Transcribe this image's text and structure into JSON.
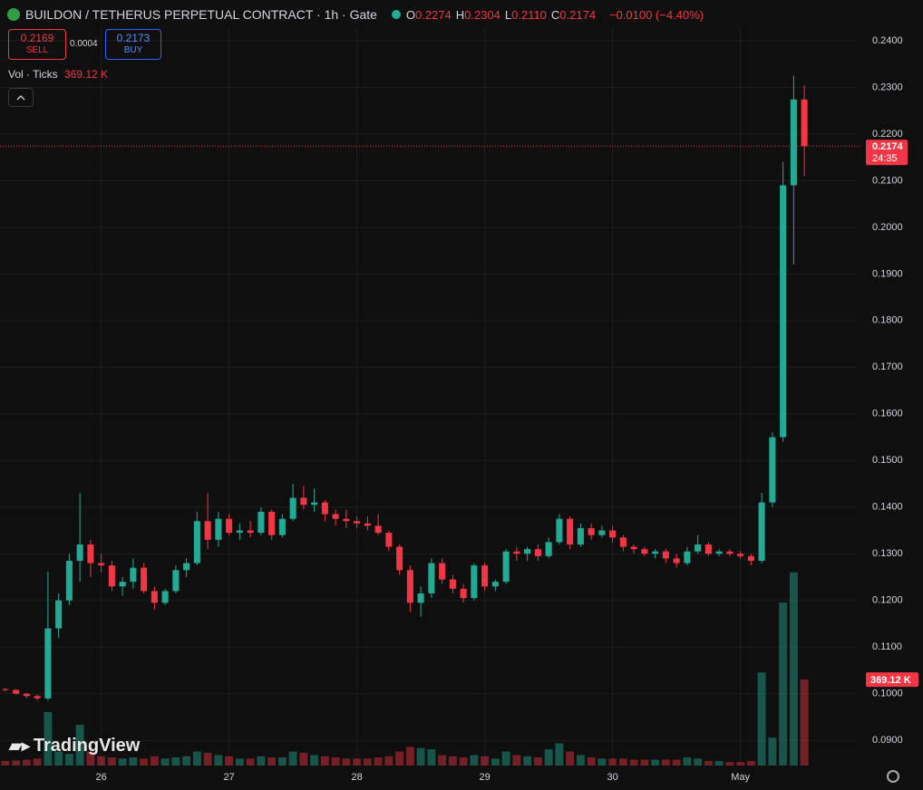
{
  "chart_data": {
    "type": "candlestick",
    "title": "BUILDON / TETHERUS PERPETUAL CONTRACT · 1h · Gate",
    "ohlc_legend": [
      {
        "key": "O",
        "value": "0.2274"
      },
      {
        "key": "H",
        "value": "0.2304"
      },
      {
        "key": "L",
        "value": "0.2110"
      },
      {
        "key": "C",
        "value": "0.2174"
      }
    ],
    "change": "−0.0100 (−4.40%)",
    "trade": {
      "sell_price": "0.2169",
      "sell": "SELL",
      "spread": "0.0004",
      "buy_price": "0.2173",
      "buy": "BUY"
    },
    "watermark": "TradingView",
    "up_color": "#22ab94",
    "down_color": "#f23645",
    "categories": [
      null,
      null,
      null,
      null,
      null,
      null,
      null,
      null,
      null,
      "26",
      null,
      null,
      null,
      null,
      null,
      null,
      null,
      null,
      null,
      null,
      null,
      "27",
      null,
      null,
      null,
      null,
      null,
      null,
      null,
      null,
      null,
      null,
      null,
      "28",
      null,
      null,
      null,
      null,
      null,
      null,
      null,
      null,
      null,
      null,
      null,
      "29",
      null,
      null,
      null,
      null,
      null,
      null,
      null,
      null,
      null,
      null,
      null,
      "30",
      null,
      null,
      null,
      null,
      null,
      null,
      null,
      null,
      null,
      null,
      null,
      "May",
      null,
      null,
      null,
      null,
      null,
      null
    ],
    "open": [
      0.101,
      0.1008,
      0.1,
      0.0995,
      0.099,
      0.114,
      0.12,
      0.1285,
      0.132,
      0.128,
      0.1275,
      0.123,
      0.124,
      0.127,
      0.122,
      0.1195,
      0.122,
      0.1265,
      0.128,
      0.137,
      0.133,
      0.1375,
      0.1345,
      0.135,
      0.1345,
      0.139,
      0.134,
      0.1375,
      0.142,
      0.1405,
      0.141,
      0.1385,
      0.1375,
      0.137,
      0.1365,
      0.136,
      0.1345,
      0.1315,
      0.1265,
      0.1195,
      0.1215,
      0.128,
      0.1245,
      0.1225,
      0.1205,
      0.1275,
      0.123,
      0.124,
      0.1305,
      0.13,
      0.131,
      0.1295,
      0.1325,
      0.1375,
      0.132,
      0.1355,
      0.134,
      0.135,
      0.1335,
      0.1315,
      0.131,
      0.13,
      0.1305,
      0.129,
      0.128,
      0.1305,
      0.132,
      0.13,
      0.1305,
      0.13,
      0.1295,
      0.1285,
      0.141,
      0.155,
      0.209,
      0.2274
    ],
    "high": [
      0.1012,
      0.101,
      0.1002,
      0.0998,
      0.1262,
      0.1215,
      0.13,
      0.143,
      0.133,
      0.13,
      0.1285,
      0.125,
      0.129,
      0.128,
      0.123,
      0.1225,
      0.1275,
      0.129,
      0.139,
      0.143,
      0.139,
      0.1385,
      0.1365,
      0.137,
      0.14,
      0.1395,
      0.1385,
      0.145,
      0.1445,
      0.144,
      0.1415,
      0.1395,
      0.1395,
      0.138,
      0.138,
      0.1385,
      0.135,
      0.132,
      0.1275,
      0.123,
      0.129,
      0.129,
      0.1255,
      0.1235,
      0.128,
      0.128,
      0.1245,
      0.131,
      0.1315,
      0.1315,
      0.132,
      0.1335,
      0.1385,
      0.138,
      0.1365,
      0.1365,
      0.136,
      0.136,
      0.134,
      0.132,
      0.1315,
      0.131,
      0.131,
      0.13,
      0.1315,
      0.134,
      0.1325,
      0.131,
      0.131,
      0.1305,
      0.13,
      0.143,
      0.156,
      0.214,
      0.2325,
      0.2304
    ],
    "low": [
      0.1005,
      0.0998,
      0.099,
      0.0985,
      0.0985,
      0.112,
      0.119,
      0.124,
      0.125,
      0.126,
      0.122,
      0.121,
      0.1225,
      0.1215,
      0.118,
      0.119,
      0.1215,
      0.125,
      0.1275,
      0.131,
      0.1315,
      0.134,
      0.133,
      0.1335,
      0.134,
      0.133,
      0.1335,
      0.137,
      0.1395,
      0.139,
      0.137,
      0.136,
      0.1355,
      0.1355,
      0.135,
      0.134,
      0.1305,
      0.1255,
      0.1175,
      0.1165,
      0.1205,
      0.1235,
      0.1215,
      0.1195,
      0.12,
      0.122,
      0.122,
      0.1235,
      0.1285,
      0.1285,
      0.1285,
      0.129,
      0.132,
      0.131,
      0.1315,
      0.133,
      0.1335,
      0.1325,
      0.1305,
      0.13,
      0.1295,
      0.129,
      0.128,
      0.127,
      0.1275,
      0.13,
      0.1295,
      0.1295,
      0.1295,
      0.129,
      0.1275,
      0.128,
      0.14,
      0.154,
      0.192,
      0.211
    ],
    "close": [
      0.1008,
      0.1,
      0.0995,
      0.099,
      0.114,
      0.12,
      0.1285,
      0.132,
      0.128,
      0.1275,
      0.123,
      0.124,
      0.127,
      0.122,
      0.1195,
      0.122,
      0.1265,
      0.128,
      0.137,
      0.133,
      0.1375,
      0.1345,
      0.135,
      0.1345,
      0.139,
      0.134,
      0.1375,
      0.142,
      0.1405,
      0.141,
      0.1385,
      0.1375,
      0.137,
      0.1365,
      0.136,
      0.1345,
      0.1315,
      0.1265,
      0.1195,
      0.1215,
      0.128,
      0.1245,
      0.1225,
      0.1205,
      0.1275,
      0.123,
      0.124,
      0.1305,
      0.13,
      0.131,
      0.1295,
      0.1325,
      0.1375,
      0.132,
      0.1355,
      0.134,
      0.135,
      0.1335,
      0.1315,
      0.131,
      0.13,
      0.1305,
      0.129,
      0.128,
      0.1305,
      0.132,
      0.13,
      0.1305,
      0.13,
      0.1295,
      0.1285,
      0.141,
      0.155,
      0.209,
      0.2274,
      0.2174
    ],
    "volume": {
      "name": "Vol · Ticks",
      "last_label": "369.12 K",
      "values": [
        20000,
        22000,
        25000,
        30000,
        230000,
        60000,
        50000,
        175000,
        60000,
        40000,
        35000,
        30000,
        35000,
        30000,
        40000,
        30000,
        35000,
        40000,
        60000,
        55000,
        45000,
        40000,
        30000,
        30000,
        40000,
        35000,
        35000,
        60000,
        55000,
        45000,
        40000,
        35000,
        30000,
        30000,
        30000,
        35000,
        40000,
        60000,
        80000,
        75000,
        70000,
        45000,
        40000,
        35000,
        45000,
        40000,
        30000,
        60000,
        45000,
        40000,
        35000,
        70000,
        95000,
        60000,
        45000,
        35000,
        30000,
        30000,
        30000,
        25000,
        25000,
        25000,
        25000,
        25000,
        35000,
        30000,
        20000,
        20000,
        15000,
        15000,
        20000,
        400000,
        120000,
        700000,
        830000,
        369120
      ],
      "vlim": [
        0,
        1000000
      ]
    },
    "last_price": 0.2174,
    "last_price_label": "0.2174",
    "countdown": "24:35",
    "ylim": [
      0.0846,
      0.2429
    ],
    "yticks": [
      {
        "value": 0.09,
        "label": "0.0900"
      },
      {
        "value": 0.1,
        "label": "0.1000"
      },
      {
        "value": 0.11,
        "label": "0.1100"
      },
      {
        "value": 0.12,
        "label": "0.1200"
      },
      {
        "value": 0.13,
        "label": "0.1300"
      },
      {
        "value": 0.14,
        "label": "0.1400"
      },
      {
        "value": 0.15,
        "label": "0.1500"
      },
      {
        "value": 0.16,
        "label": "0.1600"
      },
      {
        "value": 0.17,
        "label": "0.1700"
      },
      {
        "value": 0.18,
        "label": "0.1800"
      },
      {
        "value": 0.19,
        "label": "0.1900"
      },
      {
        "value": 0.2,
        "label": "0.2000"
      },
      {
        "value": 0.21,
        "label": "0.2100"
      },
      {
        "value": 0.22,
        "label": "0.2200"
      },
      {
        "value": 0.23,
        "label": "0.2300"
      },
      {
        "value": 0.24,
        "label": "0.2400"
      }
    ],
    "grid": true
  }
}
